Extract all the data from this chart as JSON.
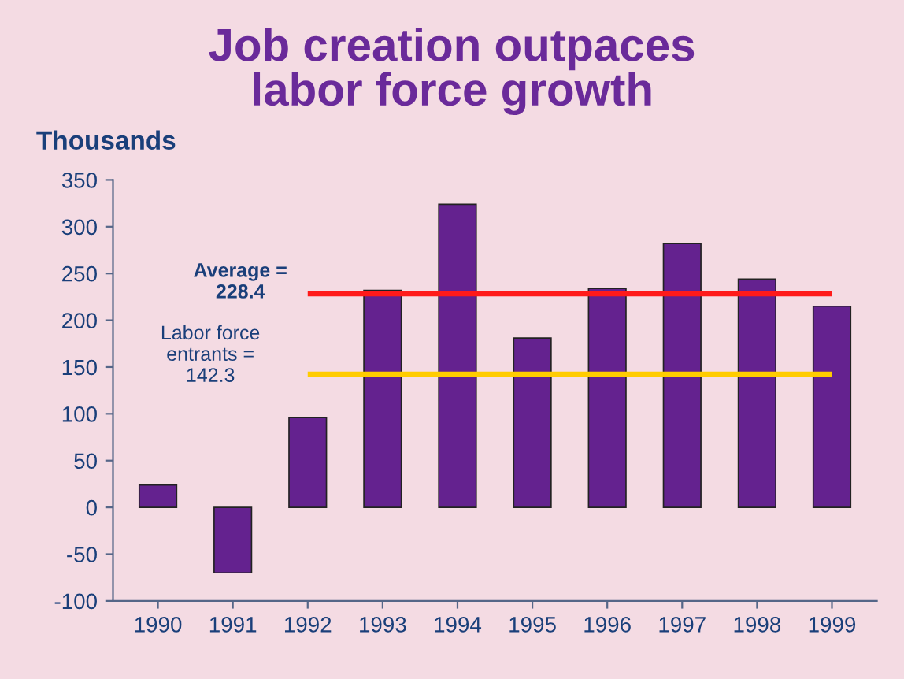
{
  "chart_data": {
    "type": "bar",
    "title": "Job creation outpaces\nlabor force growth",
    "ylabel": "Thousands",
    "categories": [
      "1990",
      "1991",
      "1992",
      "1993",
      "1994",
      "1995",
      "1996",
      "1997",
      "1998",
      "1999"
    ],
    "values": [
      24,
      -70,
      96,
      232,
      324,
      181,
      234,
      282,
      244,
      215
    ],
    "color": "#64228f",
    "ylim": [
      -100,
      350
    ],
    "yticks": [
      -100,
      -50,
      0,
      50,
      100,
      150,
      200,
      250,
      300,
      350
    ],
    "grid": false,
    "ref_lines": [
      {
        "axis": "y",
        "value": 228.4,
        "label": "Average =\n228.4",
        "color": "#ff1a1a",
        "line_style": "solid"
      },
      {
        "axis": "y",
        "value": 142.3,
        "label": "Labor force\nentrants =\n142.3",
        "color": "#ffcc00",
        "line_style": "solid"
      }
    ]
  }
}
